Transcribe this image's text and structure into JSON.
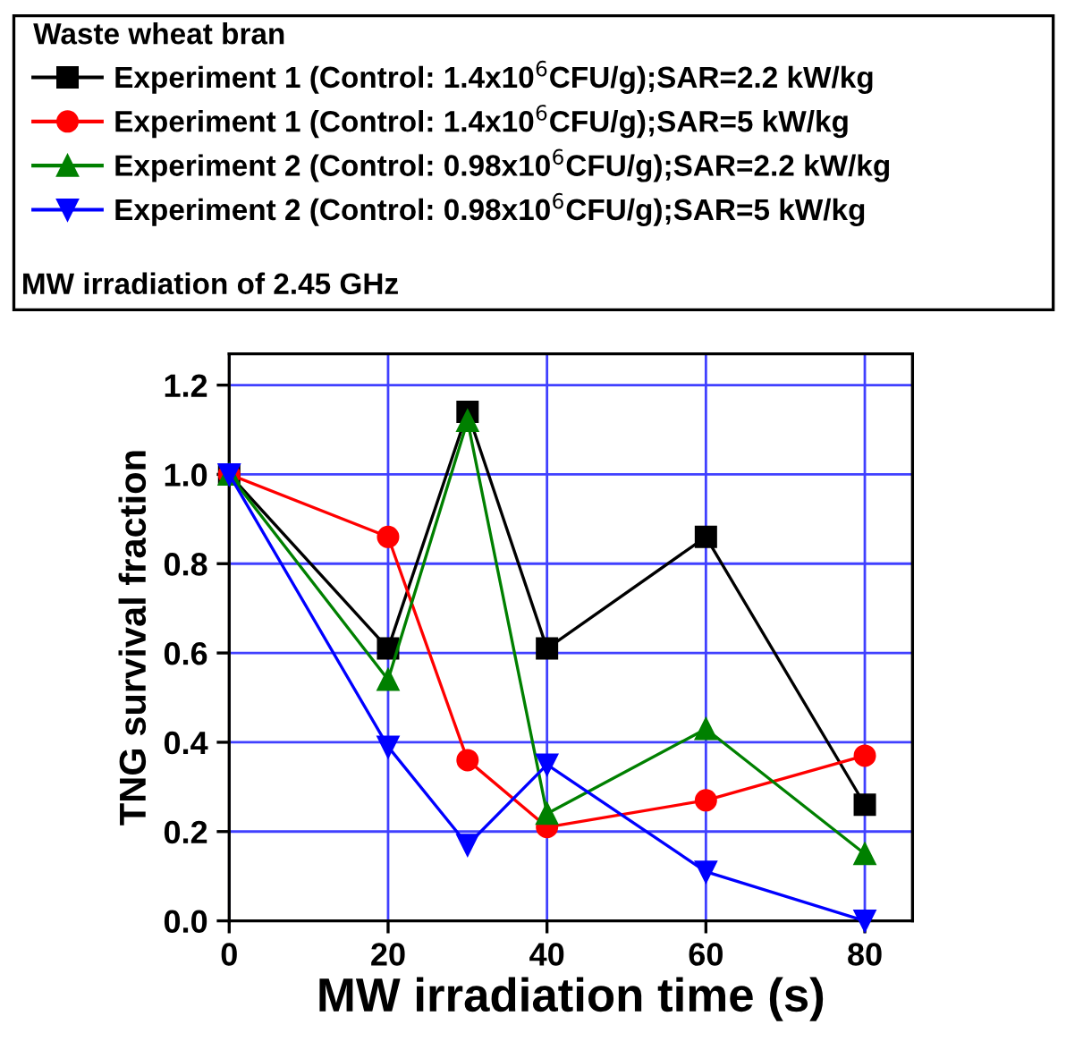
{
  "chart_data": {
    "type": "line",
    "xlabel": "MW irradiation time (s)",
    "ylabel": "TNG survival fraction",
    "legend_title": "Waste wheat bran",
    "annotations": [
      "MW irradiation of 2.45 GHz"
    ],
    "x": [
      0,
      20,
      30,
      40,
      60,
      80
    ],
    "series": [
      {
        "name": "Experiment 1 (Control: 1.4x10$^{6}$CFU/g);SAR=2.2 kW/kg",
        "color": "#000000",
        "marker": "square",
        "values": [
          1.0,
          0.61,
          1.14,
          0.61,
          0.86,
          0.26
        ]
      },
      {
        "name": "Experiment 1 (Control: 1.4x10$^{6}$CFU/g);SAR=5 kW/kg",
        "color": "#ff0000",
        "marker": "circle",
        "values": [
          1.0,
          0.86,
          0.36,
          0.21,
          0.27,
          0.37
        ]
      },
      {
        "name": "Experiment 2 (Control: 0.98x10$^{6}$CFU/g);SAR=2.2 kW/kg",
        "color": "#008000",
        "marker": "triangle",
        "values": [
          1.0,
          0.54,
          1.12,
          0.24,
          0.43,
          0.15
        ]
      },
      {
        "name": "Experiment 2 (Control: 0.98x10$^{6}$CFU/g);SAR=5 kW/kg",
        "color": "#0000ff",
        "marker": "triangle_down",
        "values": [
          1.0,
          0.39,
          0.17,
          0.35,
          0.11,
          0.0
        ]
      }
    ],
    "xlim": [
      0,
      86
    ],
    "ylim": [
      0,
      1.27
    ],
    "xticks": [
      0,
      20,
      40,
      60,
      80
    ],
    "yticks": [
      {
        "value": 0,
        "label": "0.0"
      },
      {
        "value": 0.2,
        "label": "0.2"
      },
      {
        "value": 0.4,
        "label": "0.4"
      },
      {
        "value": 0.6,
        "label": "0.6"
      },
      {
        "value": 0.8,
        "label": "0.8"
      },
      {
        "value": 1.0,
        "label": "1.0"
      },
      {
        "value": 1.2,
        "label": "1.2"
      }
    ],
    "grid": true,
    "legend": "top",
    "line_style": "solid"
  }
}
